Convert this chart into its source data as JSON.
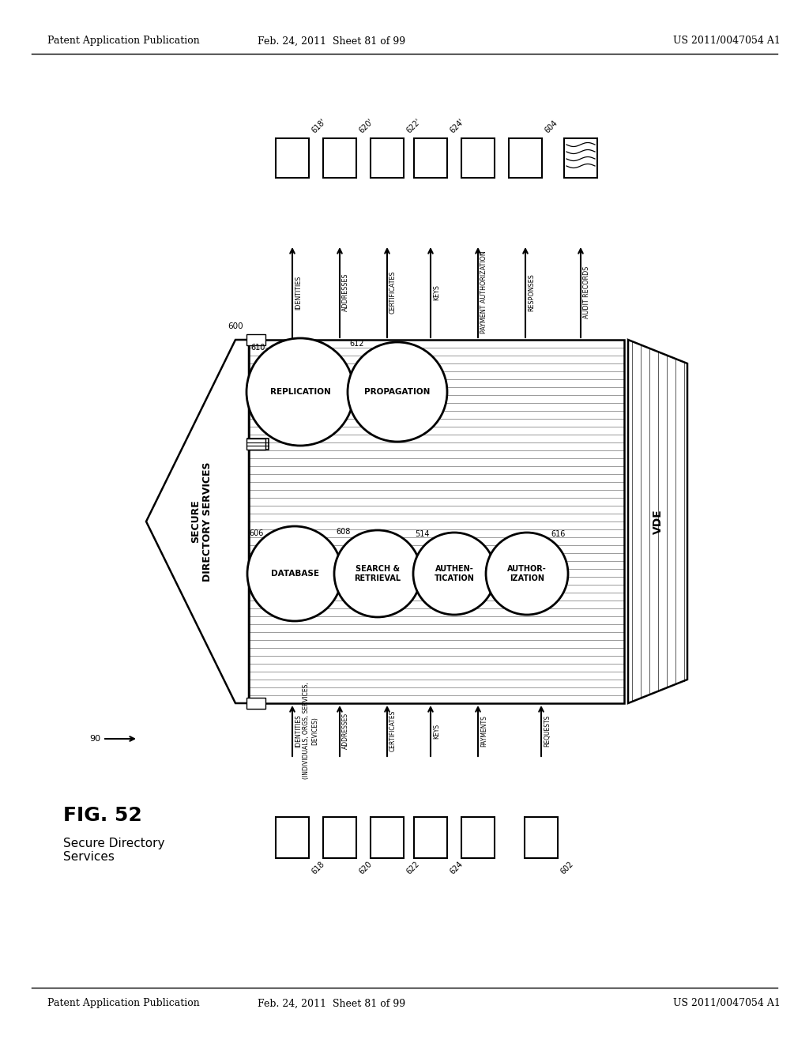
{
  "header_left": "Patent Application Publication",
  "header_mid": "Feb. 24, 2011  Sheet 81 of 99",
  "header_right": "US 2011/0047054 A1",
  "fig_label": "FIG. 52",
  "fig_title": "Secure Directory\nServices",
  "main_label": "SECURE\nDIRECTORY SERVICES",
  "num_600": "600",
  "num_610": "610",
  "num_612": "612",
  "num_606": "606",
  "num_608": "608",
  "num_614": "514",
  "num_616": "616",
  "num_90": "90",
  "vde_label": "VDE",
  "circle_top": [
    {
      "label": "REPLICATION",
      "num": "610"
    },
    {
      "label": "PROPAGATION",
      "num": "612"
    }
  ],
  "circle_bot": [
    {
      "label": "DATABASE",
      "num": "606"
    },
    {
      "label": "SEARCH &\nRETRIEVAL",
      "num": "608"
    },
    {
      "label": "AUTHEN-\nTICATION",
      "num": "514"
    },
    {
      "label": "AUTHOR-\nIZATION",
      "num": "616"
    }
  ],
  "input_labels": [
    "IDENTITIES\n(INDIVIDUALS, ORGS, SERVICES,\nDEVICES)",
    "ADDRESSES",
    "CERTIFICATES",
    "KEYS",
    "PAYMENTS",
    "REQUESTS"
  ],
  "input_nums": [
    "618",
    "620",
    "622",
    "624",
    "",
    "602"
  ],
  "output_labels": [
    "IDENTITIES",
    "ADDRESSES",
    "CERTIFICATES",
    "KEYS",
    "PAYMENT AUTHORIZATION",
    "RESPONSES",
    "AUDIT RECORDS"
  ],
  "output_nums": [
    "618'",
    "620'",
    "622'",
    "624'",
    "",
    "604",
    ""
  ],
  "bg_color": "#ffffff",
  "lc": "#000000"
}
